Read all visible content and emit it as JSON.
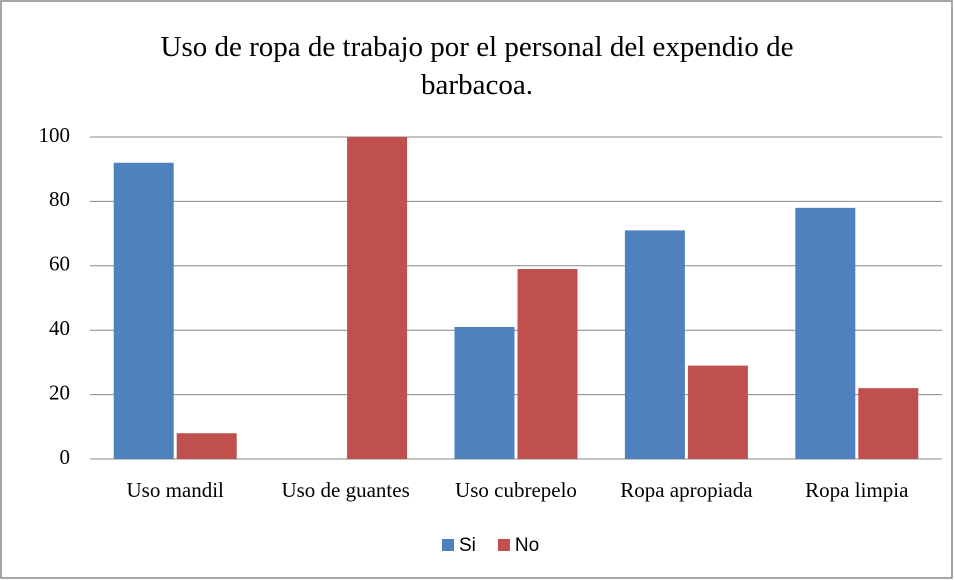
{
  "chart_data": {
    "type": "bar",
    "title": "Uso de ropa de trabajo por el personal del expendio de barbacoa.",
    "categories": [
      "Uso mandil",
      "Uso de guantes",
      "Uso cubrepelo",
      "Ropa apropiada",
      "Ropa limpia"
    ],
    "series": [
      {
        "name": "Si",
        "color": "#4f81bd",
        "values": [
          92,
          0,
          41,
          71,
          78
        ]
      },
      {
        "name": "No",
        "color": "#c0504d",
        "values": [
          8,
          100,
          59,
          29,
          22
        ]
      }
    ],
    "ylim": [
      0,
      100
    ],
    "yticks": [
      0,
      20,
      40,
      60,
      80,
      100
    ],
    "grid": true,
    "legend": "bottom"
  }
}
